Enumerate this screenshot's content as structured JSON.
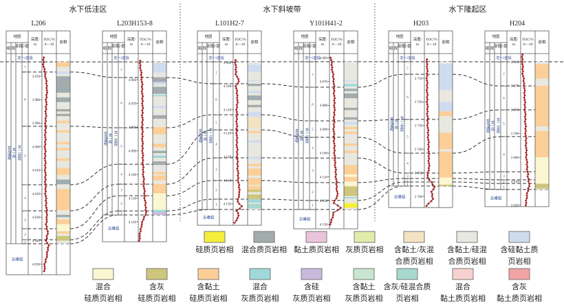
{
  "regions": [
    {
      "name": "水下低洼区"
    },
    {
      "name": "水下斜坡带"
    },
    {
      "name": "水下隆起区"
    }
  ],
  "header": {
    "strata": "地层",
    "zu": "组",
    "duan": "段",
    "yaduan": "亚段",
    "xiaoceng": "小层",
    "depth": "深度/",
    "depth_unit": "m",
    "toc": "TOC/%",
    "toc_scale": "0—10",
    "litho": "岩相"
  },
  "formation": {
    "longmaxi": "龙马溪组",
    "long1": "龙一段",
    "long1_1": "龙一1亚段",
    "long1_2": "龙一2亚段",
    "wufeng": "五峰组",
    "layers": [
      "7",
      "6",
      "5",
      "4",
      "3",
      "2",
      "1"
    ]
  },
  "toc_range": [
    0,
    10
  ],
  "wells": [
    {
      "name": "L206",
      "region": 0,
      "depth_ticks": [
        "3 970",
        "3 980",
        "3 990",
        "4 000",
        "4 010",
        "4 020",
        "4 030",
        "4 040",
        "4 050"
      ],
      "tick_values": [
        3970,
        3980,
        3990,
        4000,
        4010,
        4020,
        4030,
        4040,
        4050
      ],
      "boundaries": [
        3963.9,
        3968.2,
        3991.3,
        4016.2,
        4027.3,
        4034.9,
        4039.6,
        4041.3
      ],
      "base_depth": 4054.5,
      "litho": [
        [
          3964,
          3966,
          "cysi2"
        ],
        [
          3968,
          3969,
          "sicy"
        ],
        [
          3970,
          3977,
          "mx"
        ],
        [
          3979,
          3981,
          "mx"
        ],
        [
          3984,
          3985,
          "mx"
        ],
        [
          3986,
          3987,
          "mx"
        ],
        [
          3989,
          3990,
          "cysi2"
        ],
        [
          3993,
          3994,
          "cysi2"
        ],
        [
          3998,
          3999,
          "cysi2"
        ],
        [
          4000.5,
          4001.5,
          "cysi2"
        ],
        [
          4005,
          4006,
          "cysi2"
        ],
        [
          4009,
          4012,
          "cysi2"
        ],
        [
          4014,
          4016,
          "mx"
        ],
        [
          4018,
          4027,
          "cysi2"
        ],
        [
          4029,
          4030,
          "mx"
        ],
        [
          4031,
          4033,
          "cysi2"
        ],
        [
          4033,
          4036,
          "mxsi"
        ],
        [
          4036,
          4037,
          "cysi2"
        ],
        [
          4038,
          4040,
          "lmsi"
        ]
      ],
      "toc": [
        [
          3962,
          1
        ],
        [
          3966,
          1.2
        ],
        [
          3970,
          2.5
        ],
        [
          3975,
          3.5
        ],
        [
          3980,
          3
        ],
        [
          3990,
          2.5
        ],
        [
          4000,
          2.2
        ],
        [
          4010,
          2.3
        ],
        [
          4020,
          2.5
        ],
        [
          4030,
          3.5
        ],
        [
          4033,
          2.8
        ],
        [
          4036,
          4
        ],
        [
          4040,
          3
        ],
        [
          4042,
          4.5
        ],
        [
          4046,
          3.5
        ],
        [
          4050,
          2
        ],
        [
          4053,
          1.5
        ]
      ]
    },
    {
      "name": "L203H153-8",
      "region": 0,
      "depth_ticks": [
        "4 060",
        "4 070",
        "4 080",
        "4 090",
        "4 100",
        "4 110",
        "4 120"
      ],
      "tick_values": [
        4060,
        4070,
        4080,
        4090,
        4100,
        4110,
        4120
      ],
      "boundaries": [
        4052.5,
        4059.1,
        4080.3,
        4095.7,
        4104.1,
        4109,
        4115.4,
        4117.1
      ],
      "base_depth": 4128.4,
      "litho": [
        [
          4053,
          4057,
          "sicy"
        ],
        [
          4059,
          4061,
          "mx"
        ],
        [
          4061,
          4062,
          "sicy"
        ],
        [
          4063,
          4066,
          "mx"
        ],
        [
          4066.5,
          4067,
          "mxlm"
        ],
        [
          4071,
          4072,
          "sicy"
        ],
        [
          4075,
          4076.5,
          "mx"
        ],
        [
          4080,
          4083,
          "cysi2"
        ],
        [
          4087,
          4088.5,
          "cysi2"
        ],
        [
          4090,
          4091,
          "mx"
        ],
        [
          4092,
          4093,
          "mxlm"
        ],
        [
          4094.5,
          4096,
          "mx"
        ],
        [
          4099,
          4100,
          "cysi2"
        ],
        [
          4100.5,
          4102.5,
          "cysi2"
        ],
        [
          4104,
          4108,
          "cysi2"
        ],
        [
          4108,
          4115,
          "mxsi"
        ],
        [
          4115,
          4116,
          "mxlm"
        ],
        [
          4116,
          4117,
          "silm"
        ]
      ],
      "toc": [
        [
          4052,
          1
        ],
        [
          4060,
          2.5
        ],
        [
          4070,
          3
        ],
        [
          4080,
          2.8
        ],
        [
          4090,
          3
        ],
        [
          4100,
          3.5
        ],
        [
          4110,
          4.5
        ],
        [
          4116,
          5.5
        ],
        [
          4119,
          3.5
        ],
        [
          4122,
          2
        ],
        [
          4126,
          1
        ],
        [
          4128,
          0.5
        ]
      ]
    },
    {
      "name": "L101H2-7",
      "region": 1,
      "depth_ticks": [
        "4 090",
        "4 100",
        "4 110",
        "4 120",
        "4 130",
        "4 140",
        "4 150"
      ],
      "tick_values": [
        4090,
        4100,
        4110,
        4120,
        4130,
        4140,
        4150
      ],
      "boundaries": [
        4089.7,
        4099,
        4112.2,
        4118.6,
        4130.5,
        4140.1,
        4148,
        4152.4
      ],
      "base_depth": 4159.1,
      "litho": [
        [
          4091,
          4094,
          "sicy"
        ],
        [
          4097.5,
          4098,
          "sicy"
        ],
        [
          4099,
          4100,
          "mx"
        ],
        [
          4102,
          4103,
          "sicy"
        ],
        [
          4104,
          4106,
          "mx"
        ],
        [
          4108,
          4109,
          "mx"
        ],
        [
          4111,
          4113,
          "sicy"
        ],
        [
          4113,
          4118,
          "cylm"
        ],
        [
          4119,
          4120,
          "cysi2"
        ],
        [
          4123,
          4124,
          "sicy"
        ],
        [
          4130,
          4131,
          "sicy"
        ],
        [
          4133,
          4134,
          "cysi2"
        ],
        [
          4135,
          4138,
          "cysi2"
        ],
        [
          4139,
          4142,
          "cysi2"
        ],
        [
          4142.5,
          4144,
          "cysi2"
        ],
        [
          4144,
          4145,
          "lmsi"
        ],
        [
          4146,
          4148,
          "lmsi"
        ],
        [
          4148,
          4149.5,
          "mxlm"
        ],
        [
          4150,
          4152,
          "lmsimx"
        ]
      ],
      "toc": [
        [
          4089,
          1.5
        ],
        [
          4095,
          2
        ],
        [
          4098,
          4
        ],
        [
          4100,
          2
        ],
        [
          4105,
          3
        ],
        [
          4110,
          2.5
        ],
        [
          4120,
          2.5
        ],
        [
          4130,
          2.8
        ],
        [
          4140,
          3.5
        ],
        [
          4145,
          4.5
        ],
        [
          4149,
          3
        ],
        [
          4151,
          6
        ],
        [
          4153,
          2.5
        ],
        [
          4155,
          4
        ],
        [
          4158,
          1
        ]
      ]
    },
    {
      "name": "Y101H41-2",
      "region": 1,
      "depth_ticks": [
        "4 060",
        "4 070",
        "4 080",
        "4 090",
        "4 100",
        "4 110",
        "4 120",
        "4 130"
      ],
      "tick_values": [
        4060,
        4070,
        4080,
        4090,
        4100,
        4110,
        4120,
        4130
      ],
      "boundaries": [
        4061.7,
        4072.4,
        4086.5,
        4093.4,
        4102.1,
        4112.4,
        4119.9,
        4123.7
      ],
      "base_depth": 4131.8,
      "litho": [
        [
          4069.6,
          4070,
          "sicy"
        ],
        [
          4071,
          4072,
          "mxlm"
        ],
        [
          4073,
          4074,
          "mx"
        ],
        [
          4075,
          4077,
          "mx"
        ],
        [
          4081,
          4082,
          "mx"
        ],
        [
          4085,
          4086,
          "mx"
        ],
        [
          4087,
          4088,
          "sicy"
        ],
        [
          4089,
          4090,
          "cysi2"
        ],
        [
          4091,
          4092,
          "cysi2"
        ],
        [
          4096,
          4097,
          "cysi2"
        ],
        [
          4099,
          4100,
          "cysi2"
        ],
        [
          4105,
          4109,
          "cysi2"
        ],
        [
          4109,
          4110,
          "mxsi"
        ],
        [
          4110,
          4112,
          "cysi2"
        ],
        [
          4112,
          4114,
          "mxsi"
        ],
        [
          4114,
          4118,
          "lmsi"
        ],
        [
          4118.5,
          4119,
          "mxlm"
        ],
        [
          4121,
          4123,
          "si"
        ]
      ],
      "toc": [
        [
          4060,
          1
        ],
        [
          4070,
          3
        ],
        [
          4080,
          3.5
        ],
        [
          4090,
          3
        ],
        [
          4100,
          3.5
        ],
        [
          4110,
          4.5
        ],
        [
          4118,
          5.5
        ],
        [
          4121,
          3
        ],
        [
          4123,
          8
        ],
        [
          4125,
          3
        ],
        [
          4128,
          1.5
        ],
        [
          4130,
          0.5
        ]
      ]
    },
    {
      "name": "H203",
      "region": 2,
      "depth_ticks": [
        "3 710",
        "3 720",
        "3 730",
        "3 740",
        "3 750",
        "3 760"
      ],
      "tick_values": [
        3710,
        3720,
        3730,
        3740,
        3750,
        3760
      ],
      "boundaries": [
        3703,
        3708.3,
        3727.4,
        3741.7,
        3750.1,
        3752.4,
        3753.9,
        3755.6
      ],
      "base_depth": 3764.7,
      "litho": [
        [
          3704,
          3715,
          "sicy"
        ],
        [
          3720,
          3724,
          "sicy"
        ],
        [
          3724,
          3726,
          "cysi2"
        ],
        [
          3733,
          3740,
          "cysi2"
        ],
        [
          3741,
          3750,
          "cysi2"
        ],
        [
          3750,
          3752,
          "cysi2"
        ],
        [
          3752,
          3755,
          "mxsi"
        ],
        [
          3755,
          3755.6,
          "lmsi"
        ]
      ],
      "toc": [
        [
          3702,
          1.5
        ],
        [
          3705,
          2
        ],
        [
          3710,
          1.8
        ],
        [
          3720,
          2
        ],
        [
          3730,
          2.3
        ],
        [
          3740,
          3
        ],
        [
          3748,
          3.2
        ],
        [
          3752,
          2
        ],
        [
          3754,
          5
        ],
        [
          3756,
          7
        ],
        [
          3758,
          5
        ],
        [
          3761,
          6
        ],
        [
          3764,
          1.5
        ]
      ]
    },
    {
      "name": "H204",
      "region": 2,
      "depth_ticks": [
        "3 560",
        "3 570",
        "3 580",
        "3 590",
        "3 600",
        "3 610",
        "3 620"
      ],
      "tick_values": [
        3560,
        3570,
        3580,
        3590,
        3600,
        3610,
        3620
      ],
      "boundaries": [
        3560,
        3570.1,
        3580.1,
        3591.3,
        3606,
        3609.4,
        3610.9,
        3613.4
      ],
      "base_depth": 3620.6,
      "litho": [
        [
          3561,
          3567,
          "cysi2"
        ],
        [
          3570,
          3587,
          "cysi2"
        ],
        [
          3589,
          3600,
          "cysi2"
        ],
        [
          3600,
          3609,
          "mxsi"
        ],
        [
          3609,
          3611,
          "mxsi"
        ],
        [
          3611,
          3613,
          "lmsi"
        ]
      ],
      "toc": [
        [
          3557,
          1
        ],
        [
          3565,
          1.5
        ],
        [
          3570,
          2.5
        ],
        [
          3580,
          3
        ],
        [
          3590,
          3.5
        ],
        [
          3600,
          4
        ],
        [
          3608,
          5
        ],
        [
          3611,
          6
        ],
        [
          3614,
          5
        ],
        [
          3617,
          4
        ],
        [
          3620,
          3.5
        ]
      ]
    }
  ],
  "legend": [
    {
      "id": "si",
      "lines": [
        "硅质页岩相"
      ],
      "color": "#f5ef3a"
    },
    {
      "id": "mx",
      "lines": [
        "混合质页岩相"
      ],
      "color": "#a3acad"
    },
    {
      "id": "cy",
      "lines": [
        "黏土质页岩相"
      ],
      "color": "#ecc3dd"
    },
    {
      "id": "lm",
      "lines": [
        "灰质页岩相"
      ],
      "color": "#e0ecaa"
    },
    {
      "id": "cylm",
      "lines": [
        "含黏土/灰混",
        "合质页岩相"
      ],
      "color": "#f3e3c3"
    },
    {
      "id": "cysi",
      "lines": [
        "含黏土/硅混",
        "合质页岩相"
      ],
      "color": "#e8e8e0"
    },
    {
      "id": "sicy",
      "lines": [
        "含硅黏土质",
        "页岩相"
      ],
      "color": "#cfdcef"
    },
    {
      "id": "mxsi",
      "lines": [
        "混合",
        "硅质页岩相"
      ],
      "color": "#fbf7d3"
    },
    {
      "id": "lmsi",
      "lines": [
        "含灰",
        "硅质页岩相"
      ],
      "color": "#cdc67c"
    },
    {
      "id": "cysi2",
      "lines": [
        "含黏土",
        "硅质页岩相"
      ],
      "color": "#fccf99"
    },
    {
      "id": "mxlm",
      "lines": [
        "混合",
        "灰质页岩相"
      ],
      "color": "#a0d8dc"
    },
    {
      "id": "silm",
      "lines": [
        "含硅",
        "灰质页岩相"
      ],
      "color": "#c9b9dc"
    },
    {
      "id": "cylm2",
      "lines": [
        "含黏土",
        "灰质页岩相"
      ],
      "color": "#c8e6cf"
    },
    {
      "id": "lmsimx",
      "lines": [
        "含灰/硅混合质",
        "页岩相"
      ],
      "color": "#a8d8cf"
    },
    {
      "id": "mxcy",
      "lines": [
        "混合",
        "黏土质页岩相"
      ],
      "color": "#f7d2d0"
    },
    {
      "id": "lmcy",
      "lines": [
        "含灰",
        "黏土质页岩相"
      ],
      "color": "#f2a3a4"
    }
  ],
  "colors": {
    "toc_line": "#333333",
    "toc_dot": "#d42020"
  }
}
